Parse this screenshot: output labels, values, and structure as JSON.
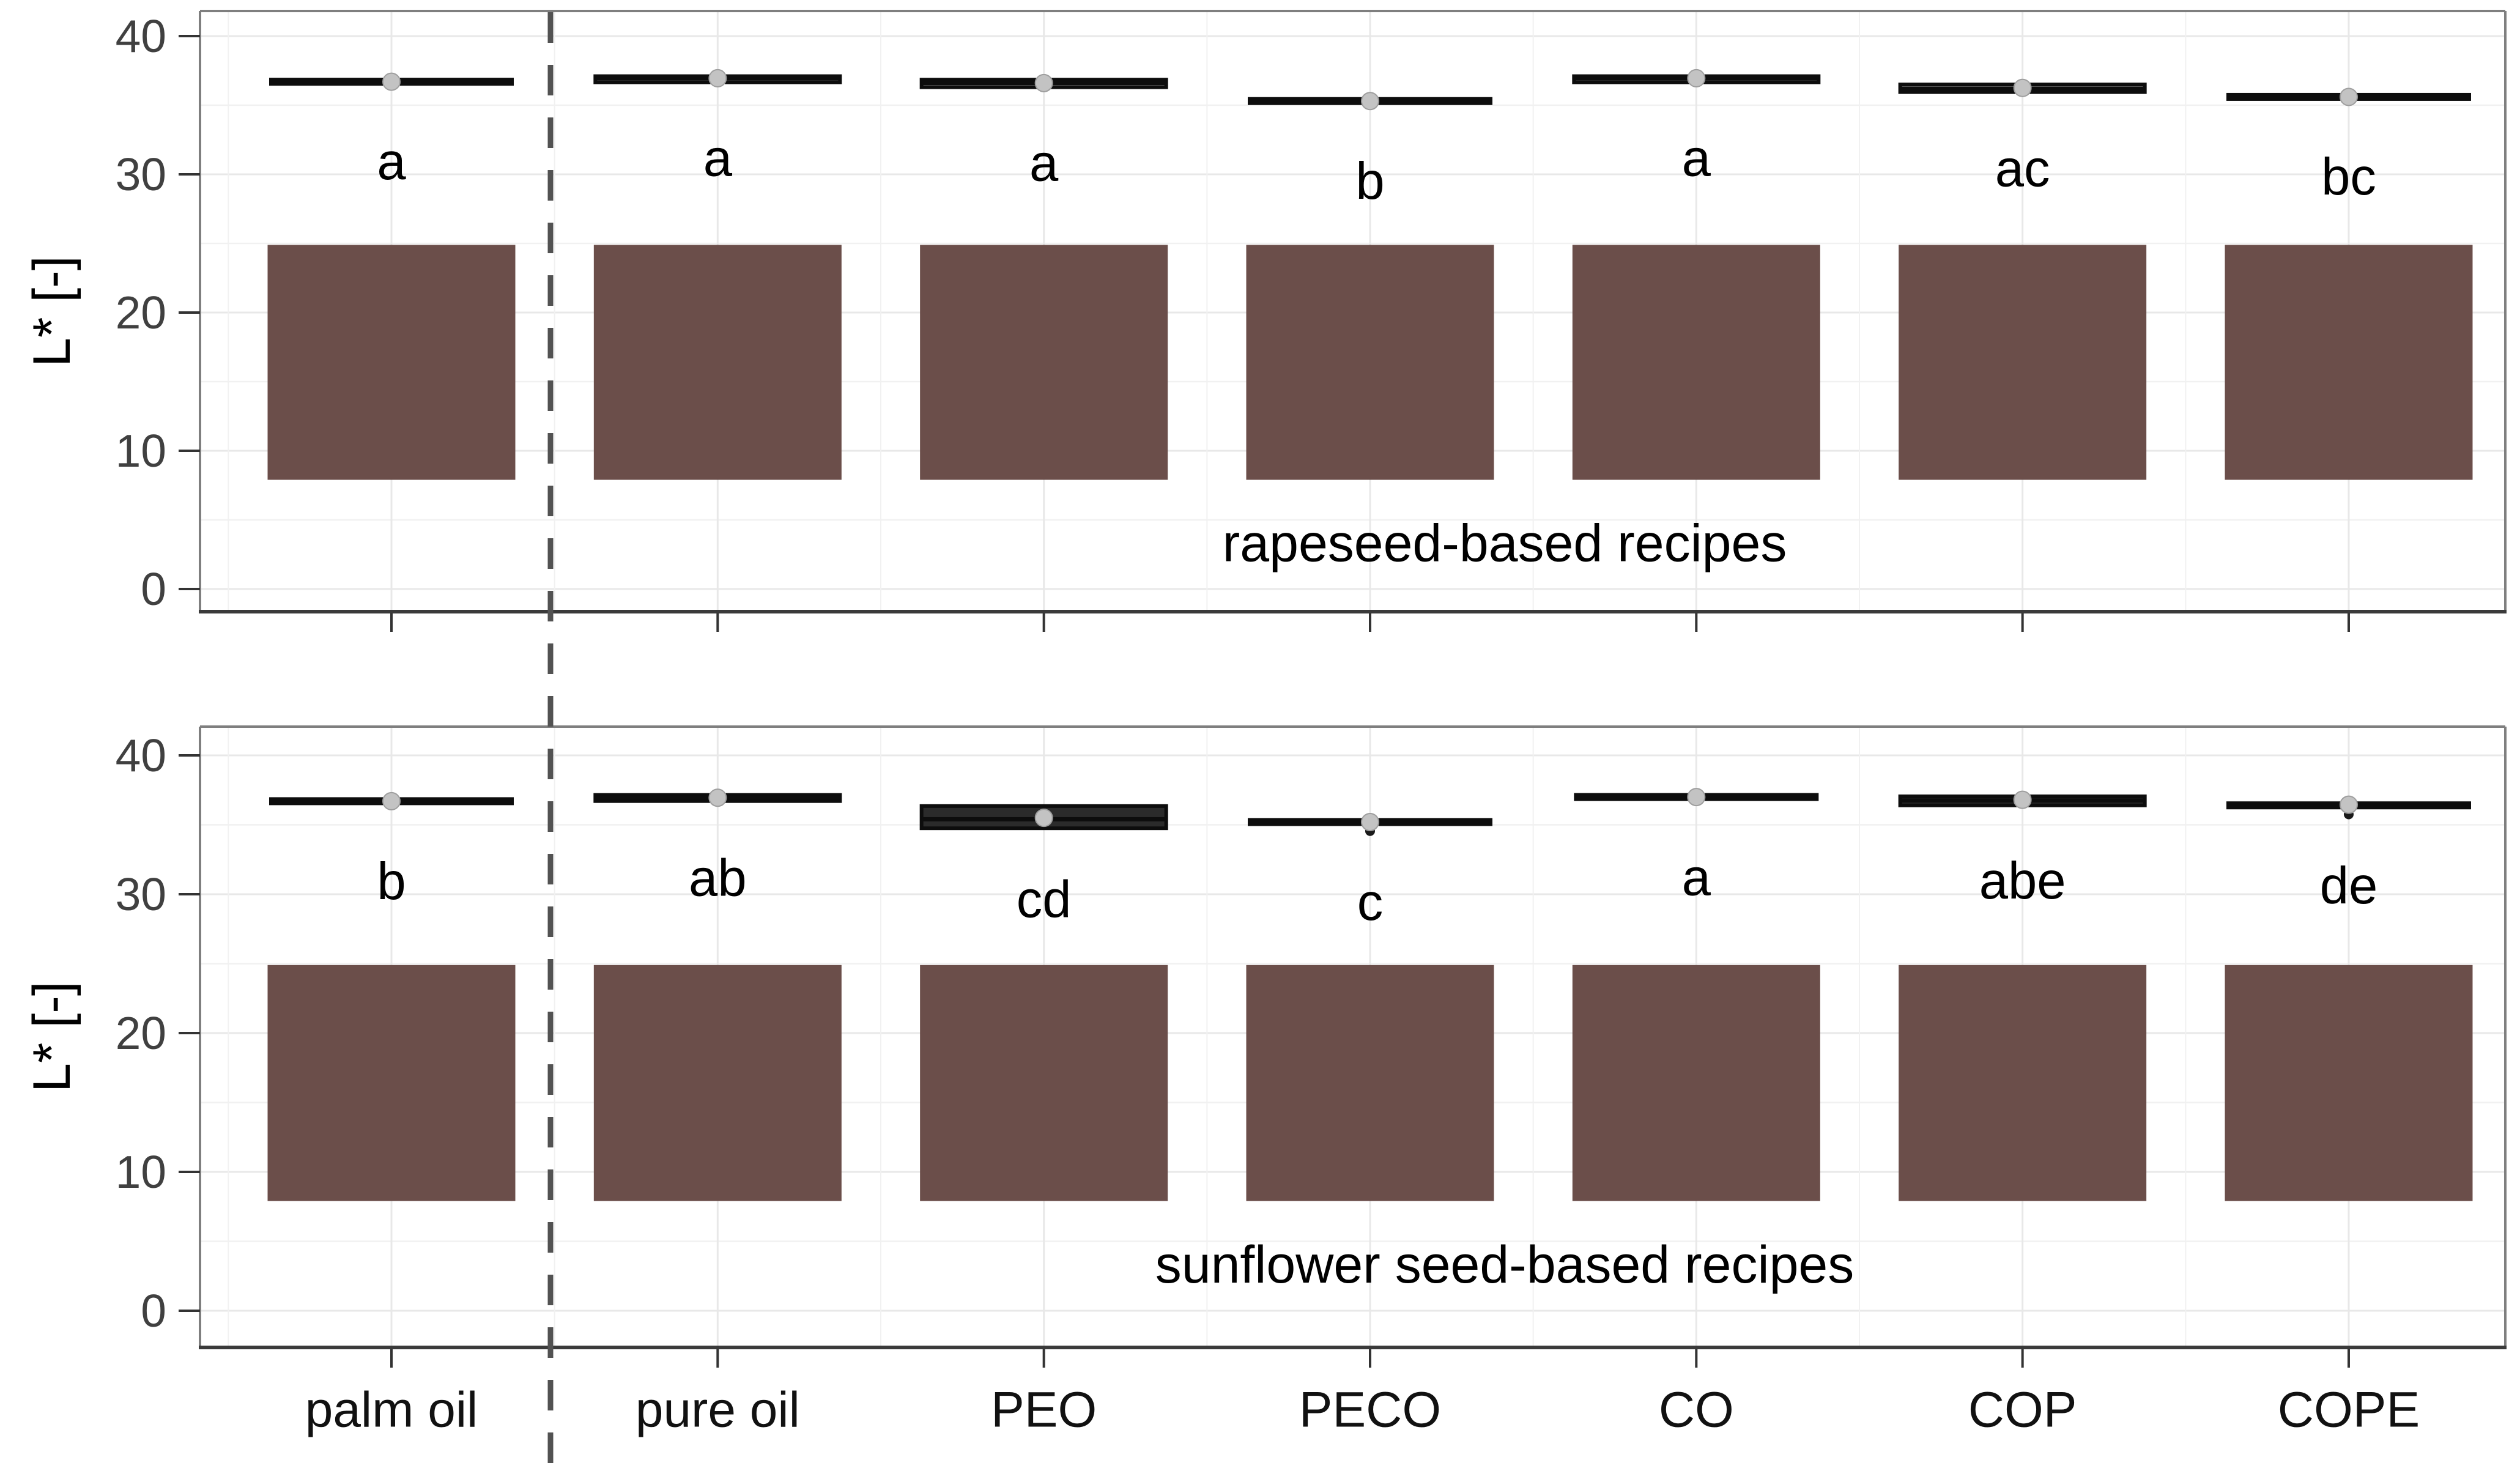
{
  "figure": {
    "background": "#ffffff",
    "separator_after_category": "palm oil",
    "separator_style": "dashed",
    "separator_color": "#525252"
  },
  "categories": [
    "palm oil",
    "pure oil",
    "PEO",
    "PECO",
    "CO",
    "COP",
    "COPE"
  ],
  "colors": {
    "swatch_brown": "#6B4E4A",
    "box_black": "#0d0d0d",
    "box_dark_fill": "#2b2b2b",
    "mean_dot": "#c3c3c3",
    "grid_major": "#e8e8e8",
    "grid_minor": "#f1f1f1",
    "panel_border": "#7f7f7f",
    "axis_line": "#3a3a3a",
    "tick_label": "#404040"
  },
  "chart_data": [
    {
      "type": "boxplot",
      "panel": "top",
      "panel_label": "rapeseed-based recipes",
      "ylabel": "L* [-]",
      "ylim": [
        0,
        40
      ],
      "y_ticks": [
        "0",
        "10",
        "20",
        "30",
        "40"
      ],
      "grid": true,
      "legend": "none",
      "swatch": {
        "color": "#6B4E4A",
        "y_from": 7.9,
        "y_to": 24.9
      },
      "series": [
        {
          "category": "palm oil",
          "box_style": "line",
          "median": 36.7,
          "q1": 36.7,
          "q3": 36.7,
          "mean": 36.7,
          "letter": "a"
        },
        {
          "category": "pure oil",
          "box_style": "box",
          "median": 36.95,
          "q1": 36.75,
          "q3": 37.1,
          "mean": 36.95,
          "letter": "a"
        },
        {
          "category": "PEO",
          "box_style": "box",
          "median": 36.6,
          "q1": 36.3,
          "q3": 36.85,
          "mean": 36.6,
          "letter": "a"
        },
        {
          "category": "PECO",
          "box_style": "line",
          "median": 35.3,
          "q1": 35.3,
          "q3": 35.3,
          "mean": 35.3,
          "letter": "b"
        },
        {
          "category": "CO",
          "box_style": "box",
          "median": 36.95,
          "q1": 36.75,
          "q3": 37.1,
          "mean": 36.95,
          "letter": "a"
        },
        {
          "category": "COP",
          "box_style": "box",
          "median": 36.2,
          "q1": 35.95,
          "q3": 36.5,
          "mean": 36.25,
          "letter": "ac"
        },
        {
          "category": "COPE",
          "box_style": "line",
          "median": 35.6,
          "q1": 35.6,
          "q3": 35.6,
          "mean": 35.6,
          "letter": "bc"
        }
      ]
    },
    {
      "type": "boxplot",
      "panel": "bottom",
      "panel_label": "sunflower seed-based recipes",
      "ylabel": "L* [-]",
      "ylim": [
        0,
        40
      ],
      "y_ticks": [
        "0",
        "10",
        "20",
        "30",
        "40"
      ],
      "grid": true,
      "legend": "none",
      "swatch": {
        "color": "#6B4E4A",
        "y_from": 7.9,
        "y_to": 24.9
      },
      "series": [
        {
          "category": "palm oil",
          "box_style": "line",
          "median": 36.7,
          "q1": 36.7,
          "q3": 36.7,
          "mean": 36.7,
          "letter": "b"
        },
        {
          "category": "pure oil",
          "box_style": "box",
          "median": 36.95,
          "q1": 36.8,
          "q3": 37.15,
          "mean": 36.95,
          "letter": "ab"
        },
        {
          "category": "PEO",
          "box_style": "box-dark",
          "median": 35.4,
          "q1": 34.75,
          "q3": 36.35,
          "mean": 35.5,
          "letter": "cd"
        },
        {
          "category": "PECO",
          "box_style": "line",
          "median": 35.2,
          "q1": 35.2,
          "q3": 35.2,
          "mean": 35.2,
          "letter": "c",
          "outlier": 34.55
        },
        {
          "category": "CO",
          "box_style": "line",
          "median": 37.0,
          "q1": 37.0,
          "q3": 37.0,
          "mean": 37.0,
          "letter": "a"
        },
        {
          "category": "COP",
          "box_style": "box-dark",
          "median": 36.75,
          "q1": 36.4,
          "q3": 37.05,
          "mean": 36.8,
          "letter": "abe"
        },
        {
          "category": "COPE",
          "box_style": "line",
          "median": 36.4,
          "q1": 36.4,
          "q3": 36.4,
          "mean": 36.45,
          "letter": "de",
          "outlier": 35.75
        }
      ]
    }
  ]
}
